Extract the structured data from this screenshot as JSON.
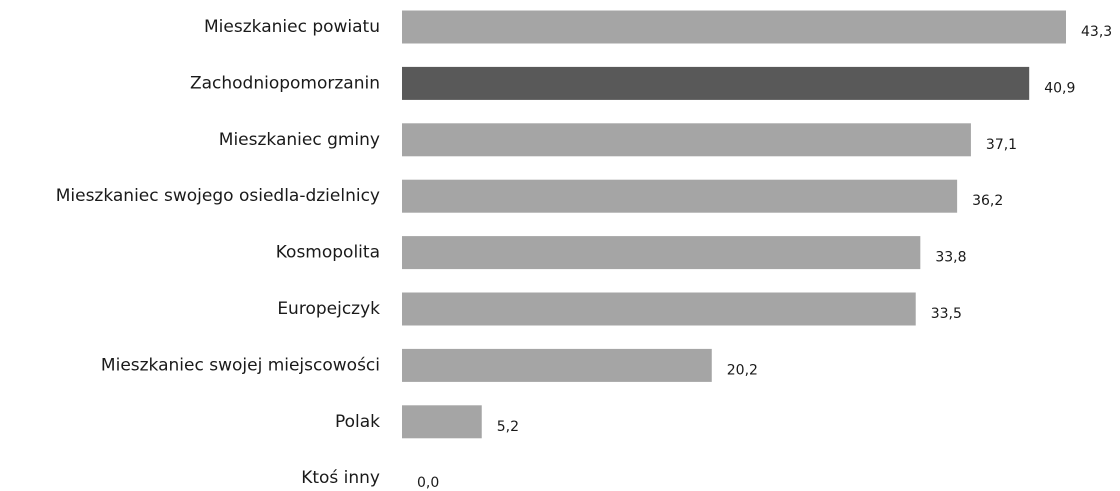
{
  "chart_data": {
    "type": "bar",
    "orientation": "horizontal",
    "categories": [
      "Mieszkaniec powiatu",
      "Zachodniopomorzanin",
      "Mieszkaniec gminy",
      "Mieszkaniec swojego osiedla-dzielnicy",
      "Kosmopolita",
      "Europejczyk",
      "Mieszkaniec swojej miejscowości",
      "Polak",
      "Ktoś inny"
    ],
    "values": [
      43.3,
      40.9,
      37.1,
      36.2,
      33.8,
      33.5,
      20.2,
      5.2,
      0.0
    ],
    "value_labels": [
      "43,3",
      "40,9",
      "37,1",
      "36,2",
      "33,8",
      "33,5",
      "20,2",
      "5,2",
      "0,0"
    ],
    "highlight_index": 1,
    "colors": {
      "default_bar": "#a5a5a5",
      "highlight_bar": "#595959"
    },
    "xlim": [
      0,
      43.3
    ],
    "grid": false,
    "legend": "none"
  }
}
